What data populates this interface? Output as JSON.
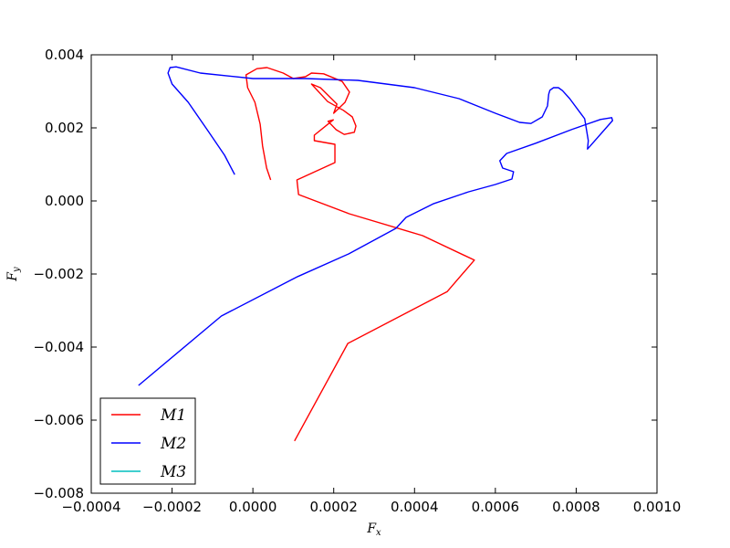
{
  "chart_data": {
    "type": "line",
    "title": "",
    "xlabel": "F_x",
    "ylabel": "F_y",
    "xlim": [
      -0.0004,
      0.001
    ],
    "ylim": [
      -0.008,
      0.004
    ],
    "grid": false,
    "legend_position": "lower-left",
    "xticks": [
      -0.0004,
      -0.0002,
      0.0,
      0.0002,
      0.0004,
      0.0006,
      0.0008,
      0.001
    ],
    "xtick_labels": [
      "−0.0004",
      "−0.0002",
      "0.0000",
      "0.0002",
      "0.0004",
      "0.0006",
      "0.0008",
      "0.0010"
    ],
    "yticks": [
      -0.008,
      -0.006,
      -0.004,
      -0.002,
      0.0,
      0.002,
      0.004
    ],
    "ytick_labels": [
      "−0.008",
      "−0.006",
      "−0.004",
      "−0.002",
      "0.000",
      "0.002",
      "0.004"
    ],
    "series": [
      {
        "name": "M1",
        "color": "#ff0000",
        "points": [
          [
            0.000103,
            -0.00657
          ],
          [
            0.000235,
            -0.0039
          ],
          [
            0.000481,
            -0.00248
          ],
          [
            0.000548,
            -0.00162
          ],
          [
            0.00042,
            -0.00095
          ],
          [
            0.000238,
            -0.00035
          ],
          [
            0.000113,
            0.000175
          ],
          [
            0.000109,
            0.000575
          ],
          [
            0.000203,
            0.00105
          ],
          [
            0.000203,
            0.00155
          ],
          [
            0.000152,
            0.00165
          ],
          [
            0.000152,
            0.0018
          ],
          [
            0.000199,
            0.00222
          ],
          [
            0.000186,
            0.00218
          ],
          [
            0.000206,
            0.00195
          ],
          [
            0.000226,
            0.00182
          ],
          [
            0.000251,
            0.00188
          ],
          [
            0.000255,
            0.00205
          ],
          [
            0.000246,
            0.0023
          ],
          [
            0.000224,
            0.00248
          ],
          [
            0.000185,
            0.00272
          ],
          [
            0.000145,
            0.0032
          ],
          [
            0.000167,
            0.0031
          ],
          [
            0.000208,
            0.00265
          ],
          [
            0.0002,
            0.0024
          ],
          [
            0.000228,
            0.0027
          ],
          [
            0.000239,
            0.00298
          ],
          [
            0.000221,
            0.00327
          ],
          [
            0.000175,
            0.00348
          ],
          [
            0.000145,
            0.0035
          ],
          [
            0.00013,
            0.0034
          ],
          [
            0.0001,
            0.00335
          ],
          [
            7.5e-05,
            0.0035
          ],
          [
            3.5e-05,
            0.00365
          ],
          [
            1e-05,
            0.00362
          ],
          [
            -1.7e-05,
            0.00345
          ],
          [
            -1.3e-05,
            0.0031
          ],
          [
            5e-06,
            0.0027
          ],
          [
            1.8e-05,
            0.0021
          ],
          [
            2.4e-05,
            0.0015
          ],
          [
            3.4e-05,
            0.0009
          ],
          [
            4.4e-05,
            0.000575
          ]
        ]
      },
      {
        "name": "M2",
        "color": "#0000ff",
        "points": [
          [
            -0.000283,
            -0.00505
          ],
          [
            -7.8e-05,
            -0.00315
          ],
          [
            0.000111,
            -0.00207
          ],
          [
            0.000237,
            -0.00145
          ],
          [
            0.000354,
            -0.00075
          ],
          [
            0.000379,
            -0.00045
          ],
          [
            0.000446,
            -8e-05
          ],
          [
            0.000534,
            0.00025
          ],
          [
            0.0006,
            0.00045
          ],
          [
            0.000641,
            0.0006
          ],
          [
            0.000645,
            0.0008
          ],
          [
            0.000618,
            0.0009
          ],
          [
            0.000611,
            0.0011
          ],
          [
            0.000628,
            0.0013
          ],
          [
            0.0007,
            0.00158
          ],
          [
            0.00079,
            0.00196
          ],
          [
            0.00086,
            0.00223
          ],
          [
            0.000888,
            0.00228
          ],
          [
            0.00089,
            0.0022
          ],
          [
            0.000828,
            0.00142
          ],
          [
            0.00083,
            0.00165
          ],
          [
            0.000821,
            0.00225
          ],
          [
            0.000784,
            0.0028
          ],
          [
            0.000766,
            0.00302
          ],
          [
            0.000756,
            0.0031
          ],
          [
            0.000744,
            0.0031
          ],
          [
            0.000735,
            0.00303
          ],
          [
            0.000732,
            0.00292
          ],
          [
            0.000729,
            0.0026
          ],
          [
            0.000716,
            0.0023
          ],
          [
            0.000688,
            0.00212
          ],
          [
            0.00066,
            0.00215
          ],
          [
            0.0006,
            0.0024
          ],
          [
            0.00051,
            0.0028
          ],
          [
            0.0004,
            0.0031
          ],
          [
            0.00026,
            0.0033
          ],
          [
            0.00013,
            0.00335
          ],
          [
            0.0,
            0.00335
          ],
          [
            -0.00013,
            0.0035
          ],
          [
            -0.00019,
            0.00367
          ],
          [
            -0.000205,
            0.00365
          ],
          [
            -0.00021,
            0.0035
          ],
          [
            -0.0002,
            0.0032
          ],
          [
            -0.00016,
            0.0027
          ],
          [
            -0.00011,
            0.0019
          ],
          [
            -7e-05,
            0.00125
          ],
          [
            -4.5e-05,
            0.00072
          ]
        ]
      },
      {
        "name": "M3",
        "color": "#00bfbf",
        "points": []
      }
    ]
  }
}
